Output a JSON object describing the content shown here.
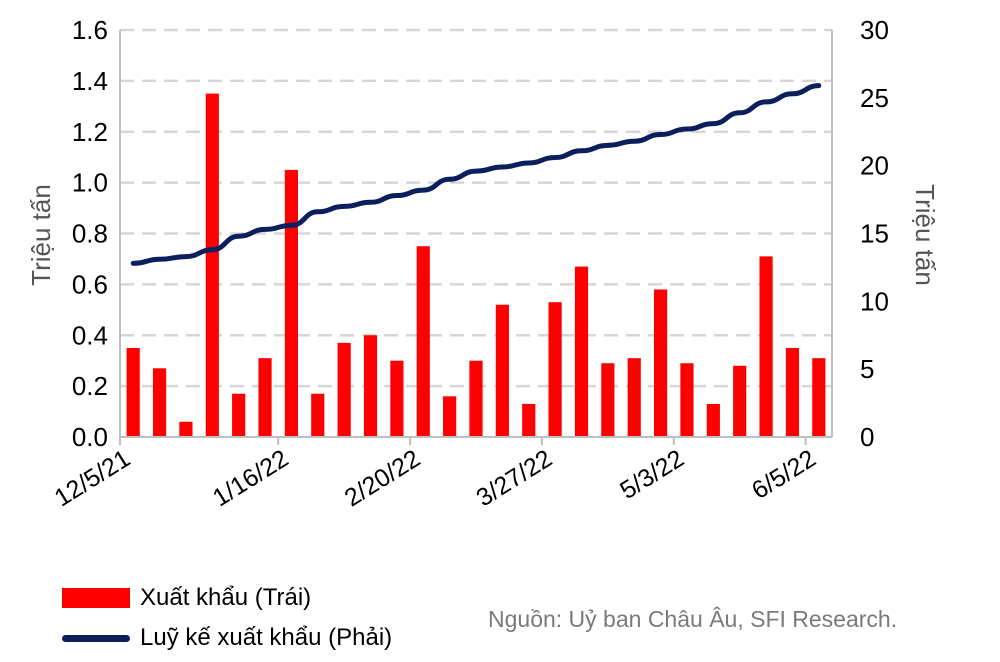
{
  "chart_data": {
    "type": "bar+line",
    "title": "",
    "y_left": {
      "label": "Triệu tấn",
      "min": 0,
      "max": 1.6,
      "ticks": [
        "0.0",
        "0.2",
        "0.4",
        "0.6",
        "0.8",
        "1.0",
        "1.2",
        "1.4",
        "1.6"
      ]
    },
    "y_right": {
      "label": "Triệu tấn",
      "min": 0,
      "max": 30,
      "ticks": [
        "0",
        "5",
        "10",
        "15",
        "20",
        "25",
        "30"
      ]
    },
    "x_tick_labels": [
      "12/5/21",
      "1/16/22",
      "2/20/22",
      "3/27/22",
      "5/3/22",
      "6/5/22"
    ],
    "grid": "horizontal dashed",
    "series": [
      {
        "name": "Xuất khẩu (Trái)",
        "type": "bar",
        "axis": "left",
        "color": "#ff0000",
        "values": [
          0.35,
          0.27,
          0.06,
          1.35,
          0.17,
          0.31,
          1.05,
          0.17,
          0.37,
          0.4,
          0.3,
          0.75,
          0.16,
          0.3,
          0.52,
          0.13,
          0.53,
          0.67,
          0.29,
          0.31,
          0.58,
          0.29,
          0.13,
          0.28,
          0.71,
          0.35,
          0.31
        ]
      },
      {
        "name": "Luỹ kế xuất khẩu (Phải)",
        "type": "line",
        "axis": "right",
        "color": "#0a1f5c",
        "values": [
          12.8,
          13.1,
          13.3,
          13.8,
          14.8,
          15.3,
          15.6,
          16.6,
          17.0,
          17.3,
          17.8,
          18.2,
          19.0,
          19.6,
          19.9,
          20.2,
          20.6,
          21.1,
          21.5,
          21.8,
          22.3,
          22.7,
          23.1,
          23.9,
          24.7,
          25.3,
          25.9
        ]
      }
    ],
    "legend_placement": "bottom-left"
  },
  "legend": {
    "bar_label": "Xuất khẩu (Trái)",
    "line_label": "Luỹ kế xuất khẩu (Phải)"
  },
  "source_note": "Nguồn: Uỷ ban Châu Âu, SFI Research."
}
